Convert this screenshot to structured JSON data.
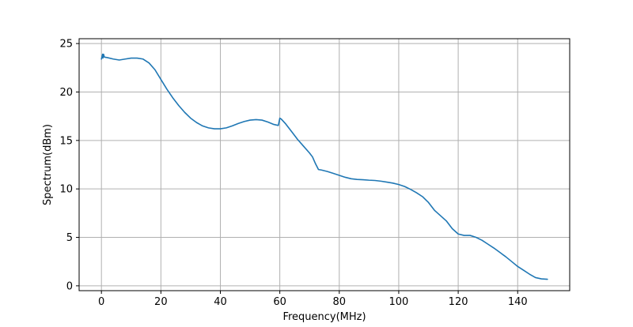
{
  "chart_data": {
    "type": "line",
    "title": "",
    "xlabel": "Frequency(MHz)",
    "ylabel": "Spectrum(dBm)",
    "xlim": [
      -7.5,
      157.5
    ],
    "ylim": [
      -0.5,
      25.5
    ],
    "xticks": [
      0,
      20,
      40,
      60,
      80,
      100,
      120,
      140
    ],
    "yticks": [
      0,
      5,
      10,
      15,
      20,
      25
    ],
    "xtick_labels": [
      "0",
      "20",
      "40",
      "60",
      "80",
      "100",
      "120",
      "140"
    ],
    "ytick_labels": [
      "0",
      "5",
      "10",
      "15",
      "20",
      "25"
    ],
    "grid": true,
    "legend": "none",
    "series": [
      {
        "color": "#1f77b4",
        "x": [
          0,
          0.4,
          0.5,
          0.7,
          1,
          2,
          4,
          6,
          8,
          10,
          12,
          14,
          16,
          18,
          20,
          22,
          24,
          26,
          28,
          30,
          32,
          34,
          36,
          38,
          40,
          42,
          44,
          46,
          48,
          50,
          52,
          54,
          56,
          58,
          59.5,
          60,
          60.5,
          62,
          64,
          66,
          68,
          70,
          71,
          72,
          73,
          74,
          76,
          78,
          80,
          82,
          84,
          86,
          88,
          90,
          92,
          94,
          96,
          98,
          100,
          102,
          104,
          106,
          108,
          110,
          112,
          114,
          116,
          118,
          120,
          122,
          124,
          126,
          128,
          130,
          132,
          134,
          136,
          138,
          140,
          142,
          144,
          146,
          148,
          150
        ],
        "y": [
          23.4,
          23.9,
          23.5,
          23.9,
          23.6,
          23.55,
          23.4,
          23.3,
          23.4,
          23.5,
          23.5,
          23.4,
          23.0,
          22.3,
          21.3,
          20.3,
          19.4,
          18.6,
          17.9,
          17.3,
          16.85,
          16.5,
          16.3,
          16.2,
          16.2,
          16.3,
          16.5,
          16.75,
          16.95,
          17.1,
          17.15,
          17.1,
          16.9,
          16.65,
          16.55,
          17.3,
          17.2,
          16.7,
          15.9,
          15.1,
          14.4,
          13.7,
          13.3,
          12.6,
          12.0,
          11.95,
          11.8,
          11.6,
          11.4,
          11.2,
          11.05,
          10.98,
          10.95,
          10.9,
          10.87,
          10.8,
          10.7,
          10.6,
          10.45,
          10.25,
          9.95,
          9.6,
          9.2,
          8.6,
          7.8,
          7.25,
          6.7,
          5.9,
          5.35,
          5.2,
          5.2,
          5.0,
          4.7,
          4.3,
          3.9,
          3.45,
          3.0,
          2.5,
          2.0,
          1.6,
          1.2,
          0.85,
          0.72,
          0.68
        ]
      }
    ]
  }
}
